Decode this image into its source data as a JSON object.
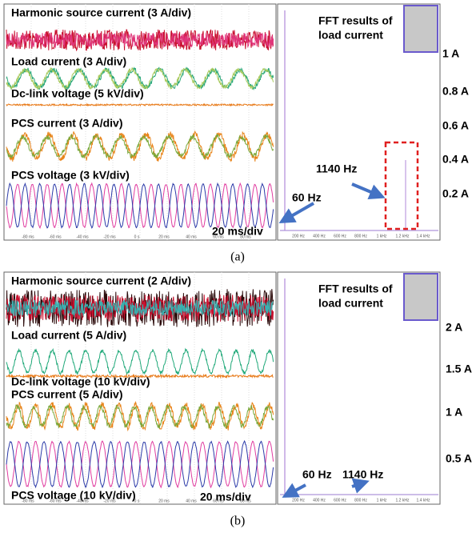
{
  "panels": [
    {
      "caption": "(a)",
      "traces": [
        "Harmonic source current (3 A/div)",
        "Load current (3 A/div)",
        "Dc-link voltage (5 kV/div)",
        "PCS current (3 A/div)",
        "PCS voltage (3 kV/div)"
      ],
      "time_scale": "20 ms/div",
      "time_ticks": [
        "-80 ms",
        "-60 ms",
        "-40 ms",
        "-20 ms",
        "0 s",
        "20 ms",
        "40 ms",
        "60 ms",
        "80 ms"
      ],
      "fft_title": [
        "FFT results of",
        "load current"
      ],
      "amplitude_labels": [
        "1 A",
        "0.8 A",
        "0.6 A",
        "0.4 A",
        "0.2 A"
      ],
      "freq_ticks": [
        "200 Hz",
        "400 Hz",
        "600 Hz",
        "800 Hz",
        "1 kHz",
        "1.2 kHz",
        "1.4 kHz"
      ],
      "annotations": [
        "60 Hz",
        "1140 Hz"
      ]
    },
    {
      "caption": "(b)",
      "traces": [
        "Harmonic source current (2 A/div)",
        "Load current (5 A/div)",
        "Dc-link voltage (10 kV/div)",
        "PCS current (5 A/div)",
        "PCS voltage (10 kV/div)"
      ],
      "time_scale": "20 ms/div",
      "time_ticks": [
        "-80 ms",
        "-60 ms",
        "-40 ms",
        "-20 ms",
        "0 s",
        "20 ms",
        "40 ms",
        "60 ms",
        "80 ms"
      ],
      "fft_title": [
        "FFT results of",
        "load current"
      ],
      "amplitude_labels": [
        "2 A",
        "1.5 A",
        "1 A",
        "0.5 A"
      ],
      "freq_ticks": [
        "200 Hz",
        "400 Hz",
        "600 Hz",
        "800 Hz",
        "1 kHz",
        "1.2 kHz",
        "1.4 kHz"
      ],
      "annotations": [
        "60 Hz",
        "1140 Hz"
      ]
    }
  ]
}
